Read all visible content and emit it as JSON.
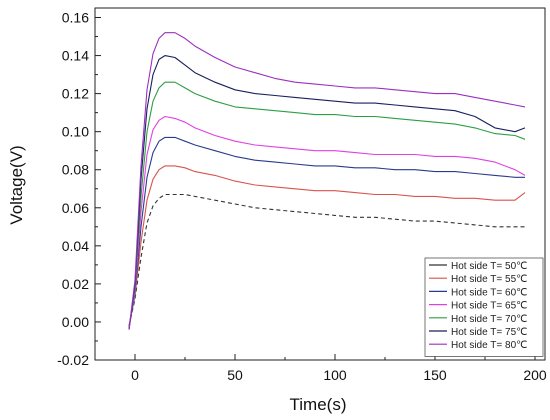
{
  "chart_data": {
    "type": "line",
    "title": "",
    "xlabel": "Time(s)",
    "ylabel": "Voltage(V)",
    "xlim": [
      -20,
      205
    ],
    "ylim": [
      -0.02,
      0.165
    ],
    "xticks": [
      0,
      50,
      100,
      150,
      200
    ],
    "yticks": [
      -0.02,
      0.0,
      0.02,
      0.04,
      0.06,
      0.08,
      0.1,
      0.12,
      0.14,
      0.16
    ],
    "xtick_labels": [
      "0",
      "50",
      "100",
      "150",
      "200"
    ],
    "ytick_labels": [
      "-0.02",
      "0.00",
      "0.02",
      "0.04",
      "0.06",
      "0.08",
      "0.10",
      "0.12",
      "0.14",
      "0.16"
    ],
    "grid": false,
    "legend_position": "bottom-right",
    "series": [
      {
        "name": "Hot side T= 50℃",
        "color": "#333333",
        "dashed": true,
        "x": [
          -3,
          0,
          3,
          6,
          9,
          12,
          15,
          20,
          25,
          30,
          40,
          50,
          60,
          70,
          80,
          90,
          100,
          110,
          120,
          130,
          140,
          150,
          160,
          170,
          180,
          190,
          195
        ],
        "y": [
          -0.002,
          0.012,
          0.034,
          0.052,
          0.061,
          0.065,
          0.067,
          0.067,
          0.067,
          0.066,
          0.064,
          0.062,
          0.06,
          0.059,
          0.058,
          0.057,
          0.056,
          0.055,
          0.055,
          0.054,
          0.053,
          0.053,
          0.052,
          0.051,
          0.05,
          0.05,
          0.05
        ]
      },
      {
        "name": "Hot side T= 55℃",
        "color": "#d9534f",
        "x": [
          -3,
          0,
          3,
          6,
          9,
          12,
          15,
          20,
          25,
          30,
          40,
          50,
          60,
          70,
          80,
          90,
          100,
          110,
          120,
          130,
          140,
          150,
          160,
          170,
          180,
          190,
          195
        ],
        "y": [
          -0.002,
          0.014,
          0.042,
          0.064,
          0.075,
          0.08,
          0.082,
          0.082,
          0.081,
          0.079,
          0.077,
          0.074,
          0.072,
          0.071,
          0.07,
          0.069,
          0.069,
          0.068,
          0.067,
          0.067,
          0.066,
          0.066,
          0.065,
          0.065,
          0.064,
          0.064,
          0.068
        ]
      },
      {
        "name": "Hot side T= 60℃",
        "color": "#2b3a8c",
        "x": [
          -3,
          0,
          3,
          6,
          9,
          12,
          15,
          20,
          25,
          30,
          40,
          50,
          60,
          70,
          80,
          90,
          100,
          110,
          120,
          130,
          140,
          150,
          160,
          170,
          180,
          190,
          195
        ],
        "y": [
          -0.003,
          0.015,
          0.05,
          0.076,
          0.089,
          0.095,
          0.097,
          0.097,
          0.095,
          0.093,
          0.09,
          0.087,
          0.085,
          0.084,
          0.083,
          0.082,
          0.082,
          0.081,
          0.081,
          0.08,
          0.08,
          0.079,
          0.079,
          0.078,
          0.077,
          0.076,
          0.076
        ]
      },
      {
        "name": "Hot side T= 65℃",
        "color": "#e040e0",
        "x": [
          -3,
          0,
          3,
          6,
          9,
          12,
          15,
          20,
          25,
          30,
          40,
          50,
          60,
          70,
          80,
          90,
          100,
          110,
          120,
          130,
          140,
          150,
          160,
          170,
          180,
          190,
          195
        ],
        "y": [
          -0.003,
          0.016,
          0.058,
          0.088,
          0.101,
          0.106,
          0.108,
          0.107,
          0.105,
          0.102,
          0.098,
          0.095,
          0.093,
          0.092,
          0.091,
          0.09,
          0.09,
          0.089,
          0.088,
          0.088,
          0.088,
          0.087,
          0.087,
          0.086,
          0.084,
          0.08,
          0.077
        ]
      },
      {
        "name": "Hot side T= 70℃",
        "color": "#2e9e44",
        "x": [
          -3,
          0,
          3,
          6,
          9,
          12,
          15,
          20,
          25,
          30,
          40,
          50,
          60,
          70,
          80,
          90,
          100,
          110,
          120,
          130,
          140,
          150,
          160,
          170,
          180,
          190,
          195
        ],
        "y": [
          -0.004,
          0.018,
          0.066,
          0.1,
          0.116,
          0.123,
          0.126,
          0.126,
          0.123,
          0.12,
          0.116,
          0.113,
          0.112,
          0.111,
          0.11,
          0.109,
          0.109,
          0.108,
          0.108,
          0.107,
          0.106,
          0.105,
          0.104,
          0.102,
          0.099,
          0.098,
          0.096
        ]
      },
      {
        "name": "Hot side T= 75℃",
        "color": "#1a1f5e",
        "x": [
          -3,
          0,
          3,
          6,
          9,
          12,
          15,
          20,
          25,
          30,
          40,
          50,
          60,
          70,
          80,
          90,
          100,
          110,
          120,
          130,
          140,
          150,
          160,
          170,
          180,
          190,
          195
        ],
        "y": [
          -0.004,
          0.02,
          0.075,
          0.112,
          0.13,
          0.138,
          0.14,
          0.139,
          0.135,
          0.131,
          0.126,
          0.122,
          0.12,
          0.119,
          0.118,
          0.117,
          0.116,
          0.115,
          0.115,
          0.114,
          0.113,
          0.112,
          0.111,
          0.108,
          0.102,
          0.1,
          0.102
        ]
      },
      {
        "name": "Hot side T= 80℃",
        "color": "#9b30c0",
        "x": [
          -3,
          0,
          3,
          6,
          9,
          12,
          15,
          20,
          25,
          30,
          40,
          50,
          60,
          70,
          80,
          90,
          100,
          110,
          120,
          130,
          140,
          150,
          160,
          170,
          180,
          190,
          195
        ],
        "y": [
          -0.004,
          0.022,
          0.082,
          0.122,
          0.141,
          0.149,
          0.152,
          0.152,
          0.149,
          0.145,
          0.139,
          0.134,
          0.131,
          0.128,
          0.126,
          0.125,
          0.124,
          0.123,
          0.123,
          0.122,
          0.121,
          0.12,
          0.12,
          0.118,
          0.116,
          0.114,
          0.113
        ]
      }
    ]
  }
}
